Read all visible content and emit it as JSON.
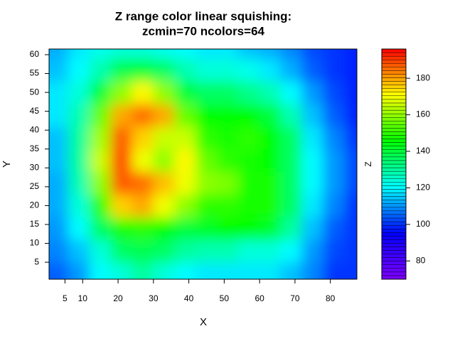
{
  "chart_data": {
    "type": "heatmap",
    "title": "Z range color linear squishing:",
    "subtitle": "zcmin=70  ncolors=64",
    "xlabel": "X",
    "ylabel": "Y",
    "zlabel": "Z",
    "x": [
      3,
      9,
      15,
      21,
      27,
      33,
      39,
      45,
      51,
      57,
      63,
      69,
      75,
      81,
      87
    ],
    "y": [
      2,
      8,
      14,
      20,
      26,
      32,
      38,
      44,
      50,
      56,
      62
    ],
    "z": [
      [
        105,
        110,
        120,
        125,
        130,
        125,
        120,
        118,
        118,
        118,
        118,
        115,
        108,
        100,
        100
      ],
      [
        108,
        115,
        125,
        135,
        138,
        135,
        130,
        128,
        128,
        125,
        125,
        120,
        110,
        102,
        100
      ],
      [
        110,
        120,
        135,
        148,
        150,
        145,
        140,
        142,
        145,
        145,
        142,
        130,
        115,
        105,
        100
      ],
      [
        112,
        125,
        150,
        175,
        180,
        170,
        160,
        150,
        150,
        148,
        148,
        135,
        118,
        108,
        100
      ],
      [
        112,
        128,
        160,
        188,
        185,
        178,
        170,
        160,
        158,
        148,
        148,
        135,
        120,
        110,
        102
      ],
      [
        115,
        130,
        165,
        190,
        170,
        160,
        172,
        155,
        150,
        148,
        145,
        135,
        120,
        110,
        102
      ],
      [
        115,
        130,
        162,
        188,
        175,
        165,
        165,
        150,
        148,
        150,
        145,
        135,
        118,
        108,
        100
      ],
      [
        118,
        128,
        155,
        180,
        185,
        180,
        155,
        145,
        145,
        145,
        140,
        128,
        115,
        105,
        98
      ],
      [
        118,
        125,
        140,
        160,
        172,
        160,
        140,
        135,
        135,
        132,
        128,
        120,
        110,
        102,
        98
      ],
      [
        115,
        120,
        128,
        138,
        140,
        135,
        128,
        125,
        125,
        122,
        118,
        112,
        105,
        100,
        98
      ],
      [
        112,
        118,
        122,
        125,
        125,
        122,
        120,
        118,
        118,
        115,
        112,
        108,
        103,
        100,
        98
      ]
    ],
    "xlim": [
      0.5,
      87.5
    ],
    "ylim": [
      0.5,
      61.5
    ],
    "xticks": [
      5,
      10,
      20,
      30,
      40,
      50,
      60,
      70,
      80
    ],
    "yticks": [
      5,
      10,
      15,
      20,
      25,
      30,
      35,
      40,
      45,
      50,
      55,
      60
    ],
    "zlim": [
      70,
      196
    ],
    "zticks": [
      80,
      100,
      120,
      140,
      160,
      180
    ],
    "ncolors": 64,
    "color_stops": [
      "#7f00ff",
      "#0000ff",
      "#00ffff",
      "#00ff00",
      "#ffff00",
      "#ff0000"
    ]
  }
}
